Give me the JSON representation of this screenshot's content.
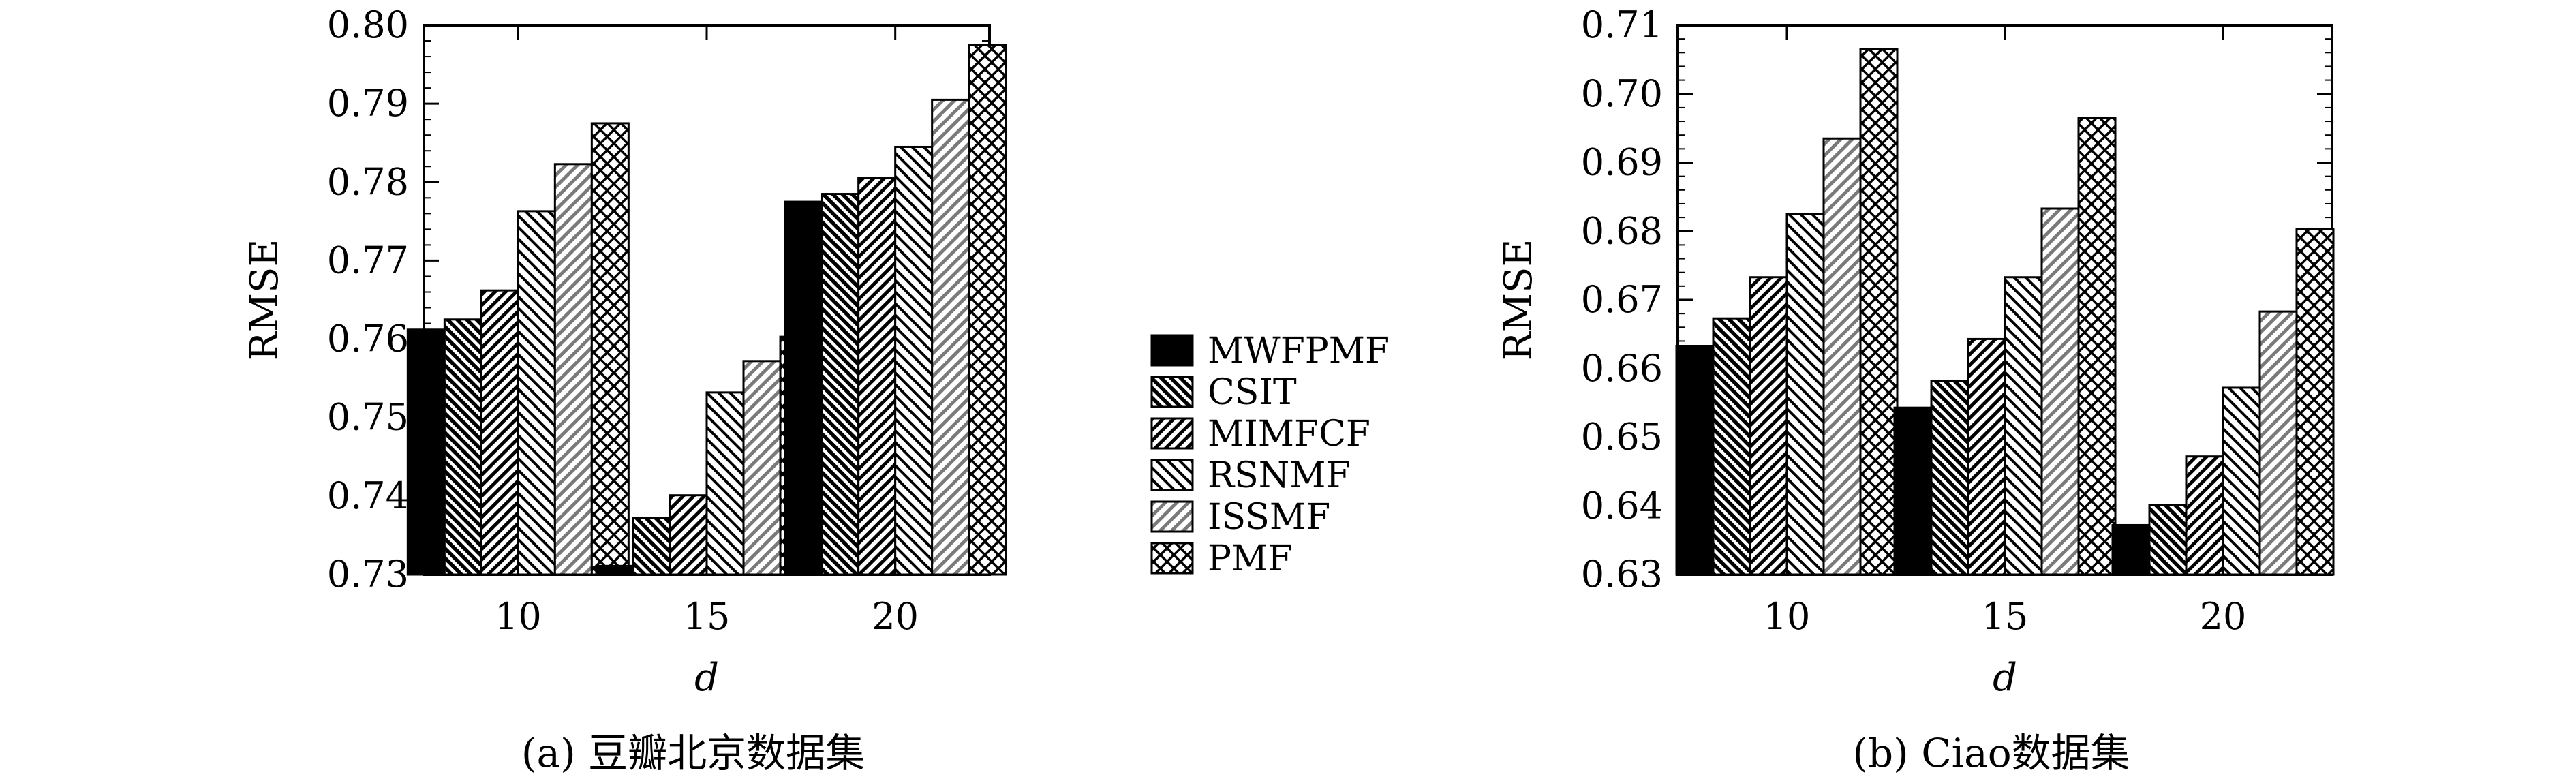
{
  "legend": [
    "MWFPMF",
    "CSIT",
    "MIMFCF",
    "RSNMF",
    "ISSMF",
    "PMF"
  ],
  "chart_data": [
    {
      "type": "bar",
      "caption": "(a) 豆瓣北京数据集",
      "xlabel": "d",
      "ylabel": "RMSE",
      "ylim": [
        0.73,
        0.8
      ],
      "yticks": [
        "0.73",
        "0.74",
        "0.75",
        "0.76",
        "0.77",
        "0.78",
        "0.79",
        "0.80"
      ],
      "categories": [
        "10",
        "15",
        "20"
      ],
      "series": [
        {
          "name": "MWFPMF",
          "values": [
            0.7612,
            0.7311,
            0.7775
          ]
        },
        {
          "name": "CSIT",
          "values": [
            0.7625,
            0.7372,
            0.7785
          ]
        },
        {
          "name": "MIMFCF",
          "values": [
            0.7662,
            0.7401,
            0.7805
          ]
        },
        {
          "name": "RSNMF",
          "values": [
            0.7763,
            0.7532,
            0.7845
          ]
        },
        {
          "name": "ISSMF",
          "values": [
            0.7823,
            0.7572,
            0.7905
          ]
        },
        {
          "name": "PMF",
          "values": [
            0.7875,
            0.7603,
            0.7975
          ]
        }
      ]
    },
    {
      "type": "bar",
      "caption": "(b) Ciao数据集",
      "xlabel": "d",
      "ylabel": "RMSE",
      "ylim": [
        0.63,
        0.71
      ],
      "yticks": [
        "0.63",
        "0.64",
        "0.65",
        "0.66",
        "0.67",
        "0.68",
        "0.69",
        "0.70",
        "0.71"
      ],
      "categories": [
        "10",
        "15",
        "20"
      ],
      "series": [
        {
          "name": "MWFPMF",
          "values": [
            0.6633,
            0.6543,
            0.6372
          ]
        },
        {
          "name": "CSIT",
          "values": [
            0.6673,
            0.6582,
            0.6401
          ]
        },
        {
          "name": "MIMFCF",
          "values": [
            0.6733,
            0.6643,
            0.6472
          ]
        },
        {
          "name": "RSNMF",
          "values": [
            0.6825,
            0.6733,
            0.6572
          ]
        },
        {
          "name": "ISSMF",
          "values": [
            0.6935,
            0.6833,
            0.6683
          ]
        },
        {
          "name": "PMF",
          "values": [
            0.7065,
            0.6965,
            0.6803
          ]
        }
      ]
    }
  ]
}
